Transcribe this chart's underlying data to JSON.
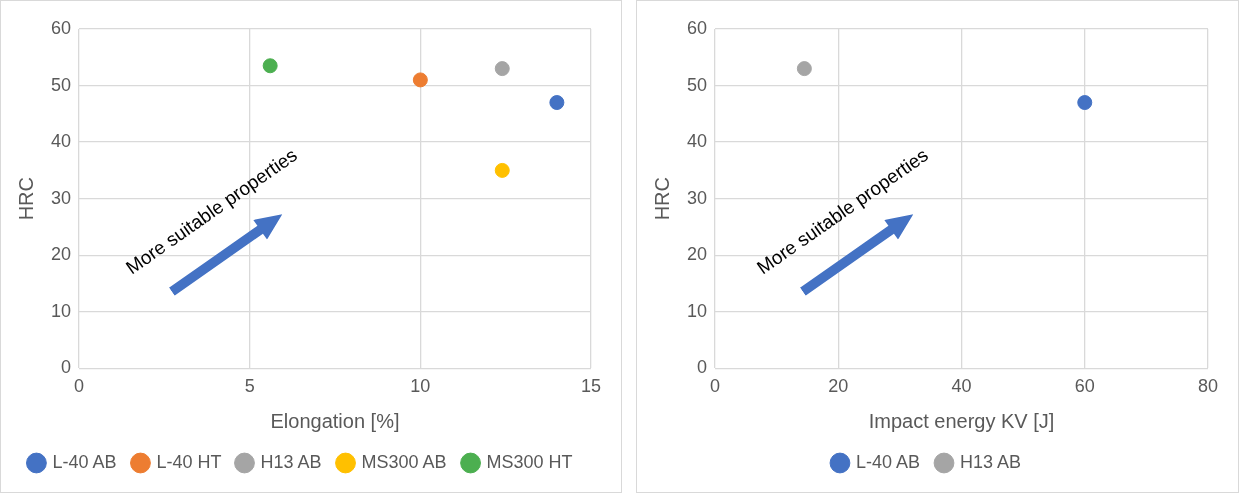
{
  "chart_data": [
    {
      "type": "scatter",
      "xlabel": "Elongation [%]",
      "ylabel": "HRC",
      "xlim": [
        0,
        15
      ],
      "xticks": [
        0,
        5,
        10,
        15
      ],
      "ylim": [
        0,
        60
      ],
      "yticks": [
        0,
        10,
        20,
        30,
        40,
        50,
        60
      ],
      "grid": true,
      "legend": "bottom",
      "marker": "circle",
      "annotations": [
        "More suitable properties"
      ],
      "series": [
        {
          "name": "L-40 AB",
          "color": "#4472c4",
          "x": [
            14
          ],
          "values": [
            47
          ]
        },
        {
          "name": "L-40 HT",
          "color": "#ed7d31",
          "x": [
            10
          ],
          "values": [
            51
          ]
        },
        {
          "name": "H13 AB",
          "color": "#a5a5a5",
          "x": [
            12.4
          ],
          "values": [
            53
          ]
        },
        {
          "name": "MS300 AB",
          "color": "#ffc000",
          "x": [
            12.4
          ],
          "values": [
            35
          ]
        },
        {
          "name": "MS300 HT",
          "color": "#4caf50",
          "x": [
            5.6
          ],
          "values": [
            53.5
          ]
        }
      ]
    },
    {
      "type": "scatter",
      "xlabel": "Impact energy KV [J]",
      "ylabel": "HRC",
      "xlim": [
        0,
        80
      ],
      "xticks": [
        0,
        20,
        40,
        60,
        80
      ],
      "ylim": [
        0,
        60
      ],
      "yticks": [
        0,
        10,
        20,
        30,
        40,
        50,
        60
      ],
      "grid": true,
      "legend": "bottom",
      "marker": "circle",
      "annotations": [
        "More suitable properties"
      ],
      "series": [
        {
          "name": "L-40 AB",
          "color": "#4472c4",
          "x": [
            60
          ],
          "values": [
            47
          ]
        },
        {
          "name": "H13 AB",
          "color": "#a5a5a5",
          "x": [
            14.5
          ],
          "values": [
            53
          ]
        }
      ]
    }
  ]
}
